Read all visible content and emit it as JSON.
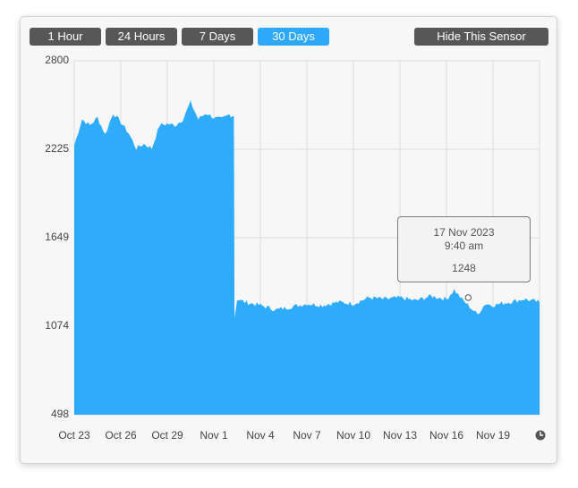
{
  "range_buttons": [
    {
      "label": "1 Hour",
      "active": false
    },
    {
      "label": "24 Hours",
      "active": false
    },
    {
      "label": "7 Days",
      "active": false
    },
    {
      "label": "30 Days",
      "active": true
    }
  ],
  "hide_sensor_label": "Hide This Sensor",
  "tooltip": {
    "date": "17 Nov 2023",
    "time": "9:40 am",
    "value": "1248"
  },
  "clock_icon": "clock-icon",
  "colors": {
    "area": "#2eabfa",
    "active_button": "#2ea8f8",
    "button": "#575757",
    "grid": "#dddddd"
  },
  "chart_data": {
    "type": "area",
    "y_ticks": [
      "2800",
      "2225",
      "1649",
      "1074",
      "498"
    ],
    "ylim": [
      498,
      2800
    ],
    "x_ticks": [
      "Oct 23",
      "Oct 26",
      "Oct 29",
      "Nov 1",
      "Nov 4",
      "Nov 7",
      "Nov 10",
      "Nov 13",
      "Nov 16",
      "Nov 19"
    ],
    "xlim": [
      "2023-10-23",
      "2023-11-22"
    ],
    "grid": true,
    "series": [
      {
        "x": [
          "2023-10-23",
          "2023-10-23 12:00",
          "2023-10-24",
          "2023-10-24 12:00",
          "2023-10-25",
          "2023-10-25 12:00",
          "2023-10-26",
          "2023-10-26 12:00",
          "2023-10-27",
          "2023-10-27 12:00",
          "2023-10-28",
          "2023-10-28 12:00",
          "2023-10-29",
          "2023-10-29 12:00",
          "2023-10-30",
          "2023-10-30 12:00",
          "2023-10-31",
          "2023-10-31 12:00",
          "2023-11-01",
          "2023-11-01 12:00",
          "2023-11-02",
          "2023-11-02 07:00",
          "2023-11-02 08:00",
          "2023-11-02 12:00",
          "2023-11-03",
          "2023-11-04",
          "2023-11-05",
          "2023-11-06",
          "2023-11-07",
          "2023-11-08",
          "2023-11-09",
          "2023-11-10",
          "2023-11-11",
          "2023-11-12",
          "2023-11-13",
          "2023-11-14",
          "2023-11-15",
          "2023-11-16",
          "2023-11-16 12:00",
          "2023-11-17",
          "2023-11-17 12:00",
          "2023-11-18",
          "2023-11-18 12:00",
          "2023-11-19",
          "2023-11-20",
          "2023-11-21",
          "2023-11-22"
        ],
        "y": [
          2250,
          2420,
          2380,
          2430,
          2320,
          2460,
          2400,
          2330,
          2230,
          2260,
          2230,
          2380,
          2390,
          2380,
          2420,
          2530,
          2420,
          2460,
          2430,
          2420,
          2450,
          2440,
          1130,
          1250,
          1230,
          1210,
          1180,
          1200,
          1220,
          1210,
          1230,
          1220,
          1260,
          1250,
          1260,
          1240,
          1270,
          1250,
          1310,
          1248,
          1200,
          1150,
          1220,
          1210,
          1230,
          1250,
          1230
        ]
      }
    ]
  }
}
